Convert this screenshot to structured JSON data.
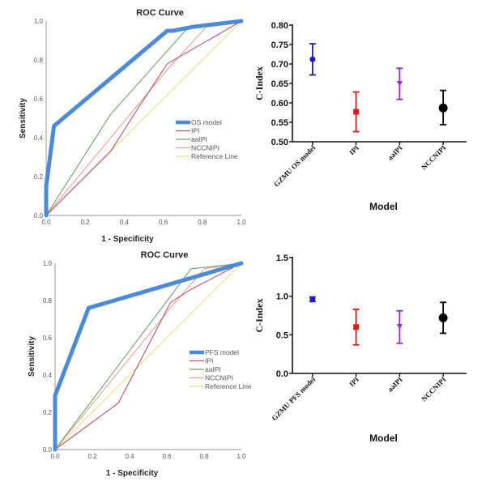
{
  "chart_data": [
    {
      "type": "line",
      "title": "ROC Curve",
      "xlabel": "1 - Specificity",
      "ylabel": "Sensitivity",
      "xlim": [
        0,
        1
      ],
      "ylim": [
        0,
        1
      ],
      "xticks": [
        "0.0",
        "0.2",
        "0.4",
        "0.6",
        "0.8",
        "1.0"
      ],
      "yticks": [
        "0.0",
        "0.2",
        "0.4",
        "0.6",
        "0.8",
        "1.0"
      ],
      "legend_position": "center-right",
      "series": [
        {
          "name": "OS model",
          "color": "#4a8ad8",
          "points": [
            [
              0,
              0
            ],
            [
              0,
              0.15
            ],
            [
              0.04,
              0.46
            ],
            [
              0.62,
              0.95
            ],
            [
              0.65,
              0.95
            ],
            [
              0.75,
              0.97
            ],
            [
              1,
              1
            ]
          ]
        },
        {
          "name": "IPI",
          "color": "#c0506a",
          "points": [
            [
              0,
              0
            ],
            [
              0.33,
              0.33
            ],
            [
              0.47,
              0.55
            ],
            [
              0.62,
              0.78
            ],
            [
              1,
              1
            ]
          ]
        },
        {
          "name": "aaIPI",
          "color": "#6aa66a",
          "points": [
            [
              0,
              0
            ],
            [
              0.33,
              0.52
            ],
            [
              0.73,
              0.97
            ],
            [
              1,
              1
            ]
          ]
        },
        {
          "name": "NCCNIPI",
          "color": "#f0a090",
          "points": [
            [
              0,
              0
            ],
            [
              0.62,
              0.75
            ],
            [
              0.82,
              0.97
            ],
            [
              1,
              1
            ]
          ]
        },
        {
          "name": "Reference Line",
          "color": "#e8e080",
          "points": [
            [
              0,
              0
            ],
            [
              1,
              1
            ]
          ]
        }
      ]
    },
    {
      "type": "scatter",
      "title": "",
      "xlabel": "Model",
      "ylabel": "C-Index",
      "ylim": [
        0.5,
        0.8
      ],
      "yticks": [
        "0.50",
        "0.55",
        "0.60",
        "0.65",
        "0.70",
        "0.75",
        "0.80"
      ],
      "categories": [
        "GZMU OS model",
        "IPI",
        "aaIPI",
        "NCCNIPI"
      ],
      "series": [
        {
          "name": "GZMU OS model",
          "color": "#1a1acc",
          "marker": "circle",
          "value": 0.712,
          "lower": 0.672,
          "upper": 0.752
        },
        {
          "name": "IPI",
          "color": "#e01818",
          "marker": "square",
          "value": 0.577,
          "lower": 0.526,
          "upper": 0.628
        },
        {
          "name": "aaIPI",
          "color": "#a020e0",
          "marker": "triangle-down",
          "value": 0.65,
          "lower": 0.609,
          "upper": 0.689
        },
        {
          "name": "NCCNIPI",
          "color": "#000000",
          "marker": "circle",
          "value": 0.587,
          "lower": 0.544,
          "upper": 0.632
        }
      ]
    },
    {
      "type": "line",
      "title": "ROC Curve",
      "xlabel": "1 - Specificity",
      "ylabel": "Sensitivity",
      "xlim": [
        0,
        1
      ],
      "ylim": [
        0,
        1
      ],
      "xticks": [
        "0.0",
        "0.2",
        "0.4",
        "0.6",
        "0.8",
        "1.0"
      ],
      "yticks": [
        "0.0",
        "0.2",
        "0.4",
        "0.6",
        "0.8",
        "1.0"
      ],
      "legend_position": "center-right",
      "series": [
        {
          "name": "PFS model",
          "color": "#4a8ad8",
          "points": [
            [
              0,
              0
            ],
            [
              0,
              0.29
            ],
            [
              0.18,
              0.76
            ],
            [
              1,
              1
            ]
          ]
        },
        {
          "name": "IPI",
          "color": "#c0506a",
          "points": [
            [
              0,
              0
            ],
            [
              0.34,
              0.25
            ],
            [
              0.62,
              0.79
            ],
            [
              0.73,
              0.86
            ],
            [
              1,
              1
            ]
          ]
        },
        {
          "name": "aaIPI",
          "color": "#6aa66a",
          "points": [
            [
              0,
              0
            ],
            [
              0.73,
              0.97
            ],
            [
              1,
              1
            ]
          ]
        },
        {
          "name": "NCCNIPI",
          "color": "#f0a090",
          "points": [
            [
              0,
              0
            ],
            [
              0.62,
              0.76
            ],
            [
              0.8,
              0.97
            ],
            [
              1,
              1
            ]
          ]
        },
        {
          "name": "Reference Line",
          "color": "#e8e080",
          "points": [
            [
              0,
              0
            ],
            [
              1,
              1
            ]
          ]
        }
      ]
    },
    {
      "type": "scatter",
      "title": "",
      "xlabel": "Model",
      "ylabel": "C-Index",
      "ylim": [
        0,
        1.5
      ],
      "yticks": [
        "0.0",
        "0.5",
        "1.0",
        "1.5"
      ],
      "categories": [
        "GZMU PFS model",
        "IPI",
        "aaIPI",
        "NCCNIPI"
      ],
      "series": [
        {
          "name": "GZMU PFS model",
          "color": "#1a1acc",
          "marker": "circle",
          "value": 0.96,
          "lower": 0.93,
          "upper": 0.99
        },
        {
          "name": "IPI",
          "color": "#e01818",
          "marker": "square",
          "value": 0.6,
          "lower": 0.37,
          "upper": 0.83
        },
        {
          "name": "aaIPI",
          "color": "#a020e0",
          "marker": "triangle-down",
          "value": 0.61,
          "lower": 0.39,
          "upper": 0.81
        },
        {
          "name": "NCCNIPI",
          "color": "#000000",
          "marker": "circle",
          "value": 0.72,
          "lower": 0.52,
          "upper": 0.92
        }
      ]
    }
  ]
}
